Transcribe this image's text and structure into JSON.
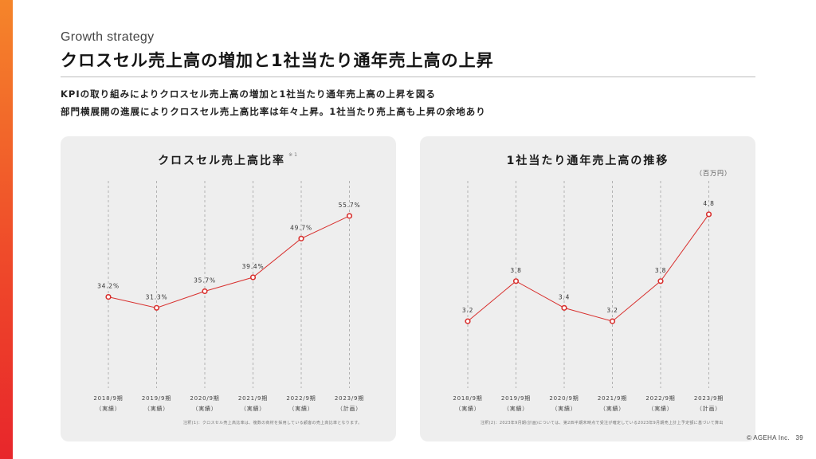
{
  "slide": {
    "eyebrow": "Growth strategy",
    "title": "クロスセル売上高の増加と1社当たり通年売上高の上昇",
    "lead_1": "KPIの取り組みによりクロスセル売上高の増加と1社当たり通年売上高の上昇を図る",
    "lead_2": "部門横展開の進展によりクロスセル売上高比率は年々上昇。1社当たり売上高も上昇の余地あり",
    "copyright": "© AGEHA Inc.",
    "page_number": "39"
  },
  "colors": {
    "accent": "#e8262b",
    "accent_orange": "#f5852a",
    "line": "#d8302e",
    "panel": "#eeeeee"
  },
  "panels": {
    "left": {
      "title": "クロスセル売上高比率",
      "note_mark": "※1",
      "footnote": "注釈(1)：クロスセル売上高比率は、複数の商材を採用している顧客の売上高比率となります。"
    },
    "right": {
      "title": "1社当たり通年売上高の推移",
      "unit": "（百万円）",
      "footnote": "注釈(2)：2023年9月期(計画)については、第2四半期末時点で受注が確定している2023年9月期売上計上予定額に基づいて算出"
    }
  },
  "chart_data": [
    {
      "type": "line",
      "title": "クロスセル売上高比率",
      "categories": [
        "2018/9期",
        "2019/9期",
        "2020/9期",
        "2021/9期",
        "2022/9期",
        "2023/9期"
      ],
      "sublabels": [
        "（実績）",
        "（実績）",
        "（実績）",
        "（実績）",
        "（実績）",
        "（計画）"
      ],
      "values": [
        34.2,
        31.3,
        35.7,
        39.4,
        49.7,
        55.7
      ],
      "value_labels": [
        "34.2%",
        "31.3%",
        "35.7%",
        "39.4%",
        "49.7%",
        "55.7%"
      ],
      "ylim": [
        10,
        65
      ],
      "grid": "vertical dashed"
    },
    {
      "type": "line",
      "title": "1社当たり通年売上高の推移",
      "categories": [
        "2018/9期",
        "2019/9期",
        "2020/9期",
        "2021/9期",
        "2022/9期",
        "2023/9期"
      ],
      "sublabels": [
        "（実績）",
        "（実績）",
        "（実績）",
        "（実績）",
        "（実績）",
        "（計画）"
      ],
      "values": [
        3.2,
        3.8,
        3.4,
        3.2,
        3.8,
        4.8
      ],
      "value_labels": [
        "3.2",
        "3.8",
        "3.4",
        "3.2",
        "3.8",
        "4.8"
      ],
      "ylabel": "（百万円）",
      "ylim": [
        2.2,
        5.3
      ],
      "grid": "vertical dashed"
    }
  ]
}
